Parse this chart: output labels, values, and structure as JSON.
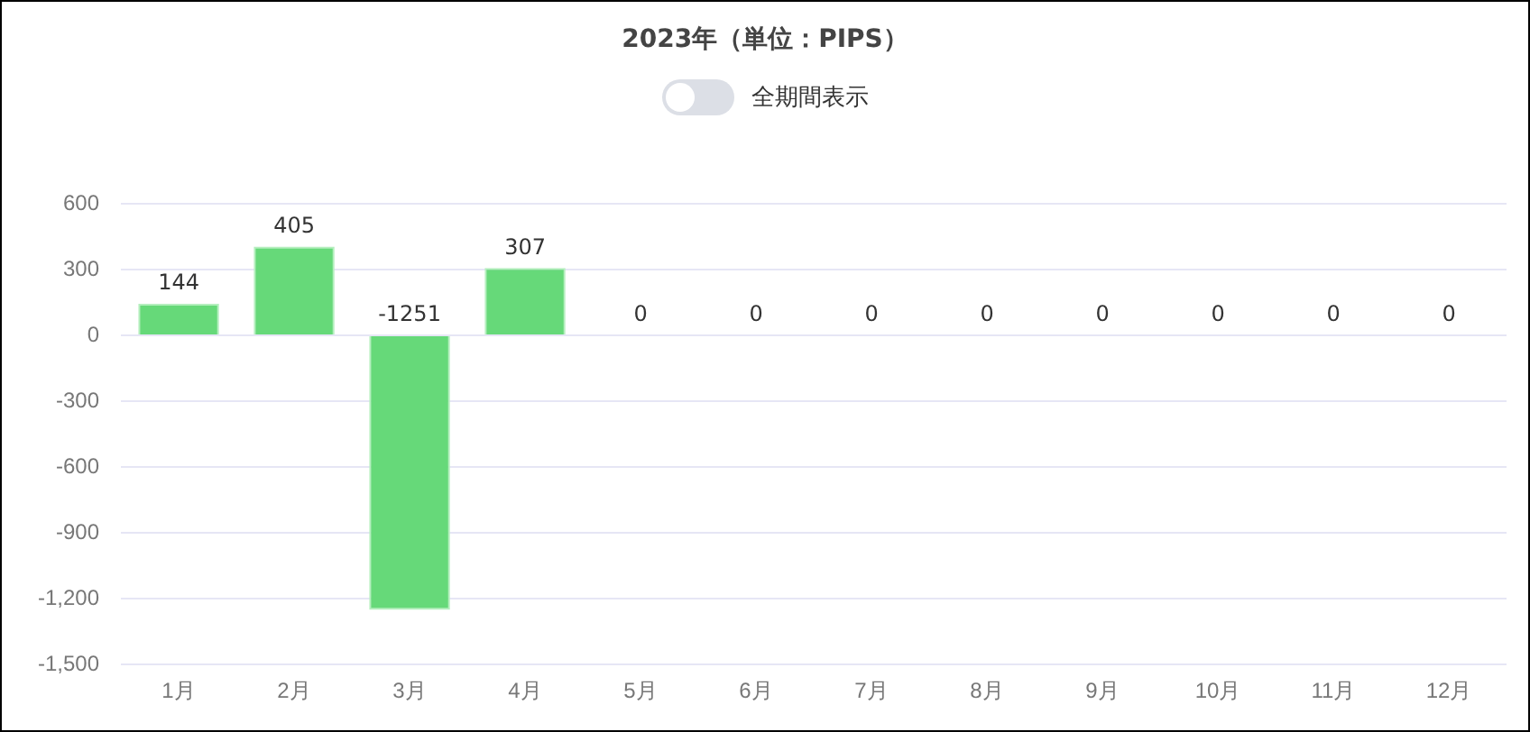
{
  "chart_data": {
    "type": "bar",
    "title": "2023年（単位：PIPS）",
    "annotations": [
      "全期間表示"
    ],
    "categories": [
      "1月",
      "2月",
      "3月",
      "4月",
      "5月",
      "6月",
      "7月",
      "8月",
      "9月",
      "10月",
      "11月",
      "12月"
    ],
    "values": [
      144,
      405,
      -1251,
      307,
      0,
      0,
      0,
      0,
      0,
      0,
      0,
      0
    ],
    "color": "#66d979",
    "ylim": [
      -1500,
      600
    ],
    "yticks": [
      600,
      300,
      0,
      -300,
      -600,
      -900,
      {
        "value": -1200,
        "label": "-1,200"
      },
      {
        "value": -1500,
        "label": "-1,500"
      }
    ],
    "grid": "y",
    "data_labels": true,
    "legend": false
  }
}
